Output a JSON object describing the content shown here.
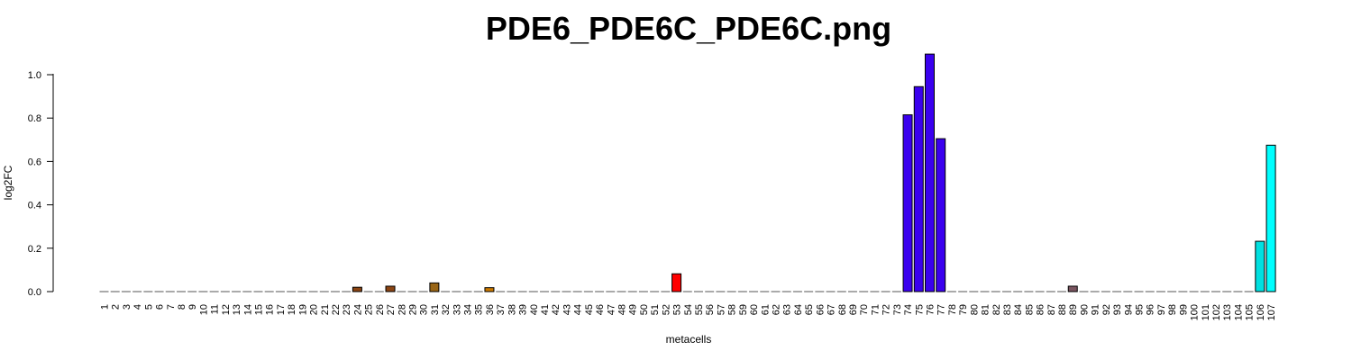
{
  "chart_data": {
    "type": "bar",
    "title": "PDE6_PDE6C_PDE6C.png",
    "xlabel": "metacells",
    "ylabel": "log2FC",
    "ylim": [
      0,
      1.1
    ],
    "yticks": [
      0.0,
      0.2,
      0.4,
      0.6,
      0.8,
      1.0
    ],
    "ytick_labels": [
      "0.0",
      "0.2",
      "0.4",
      "0.6",
      "0.8",
      "1.0"
    ],
    "grid": false,
    "categories": [
      "1",
      "2",
      "3",
      "4",
      "5",
      "6",
      "7",
      "8",
      "9",
      "10",
      "11",
      "12",
      "13",
      "14",
      "15",
      "16",
      "17",
      "18",
      "19",
      "20",
      "21",
      "22",
      "23",
      "24",
      "25",
      "26",
      "27",
      "28",
      "29",
      "30",
      "31",
      "32",
      "33",
      "34",
      "35",
      "36",
      "37",
      "38",
      "39",
      "40",
      "41",
      "42",
      "43",
      "44",
      "45",
      "46",
      "47",
      "48",
      "49",
      "50",
      "51",
      "52",
      "53",
      "54",
      "55",
      "56",
      "57",
      "58",
      "59",
      "60",
      "61",
      "62",
      "63",
      "64",
      "65",
      "66",
      "67",
      "68",
      "69",
      "70",
      "71",
      "72",
      "73",
      "74",
      "75",
      "76",
      "77",
      "78",
      "79",
      "80",
      "81",
      "82",
      "83",
      "84",
      "85",
      "86",
      "87",
      "88",
      "89",
      "90",
      "91",
      "92",
      "93",
      "94",
      "95",
      "96",
      "97",
      "98",
      "99",
      "100",
      "101",
      "102",
      "103",
      "104",
      "105",
      "106",
      "107"
    ],
    "values": [
      0,
      0,
      0,
      0,
      0,
      0,
      0,
      0,
      0,
      0,
      0,
      0,
      0,
      0,
      0,
      0,
      0,
      0,
      0,
      0,
      0,
      0,
      0,
      0.02,
      0,
      0,
      0.025,
      0,
      0,
      0,
      0.04,
      0,
      0,
      0,
      0,
      0.018,
      0,
      0,
      0,
      0,
      0,
      0,
      0,
      0,
      0,
      0,
      0,
      0,
      0,
      0,
      0,
      0,
      0.082,
      0,
      0,
      0,
      0,
      0,
      0,
      0,
      0,
      0,
      0,
      0,
      0,
      0,
      0,
      0,
      0,
      0,
      0,
      0,
      0,
      0.815,
      0.945,
      1.095,
      0.705,
      0,
      0,
      0,
      0,
      0,
      0,
      0,
      0,
      0,
      0,
      0,
      0.025,
      0,
      0,
      0,
      0,
      0,
      0,
      0,
      0,
      0,
      0,
      0,
      0,
      0,
      0,
      0,
      0,
      0.232,
      0.675
    ],
    "colors": {
      "24": "#8B4513",
      "27": "#8B4513",
      "31": "#996515",
      "36": "#CC7A00",
      "53": "#FF0000",
      "74": "#3A00EE",
      "75": "#3A00EE",
      "76": "#3A00EE",
      "77": "#3A00EE",
      "89": "#7A5560",
      "106": "#00E0E0",
      "107": "#00FFFF"
    },
    "zero_line_color": "#555555",
    "bar_border_color": "#000000"
  }
}
